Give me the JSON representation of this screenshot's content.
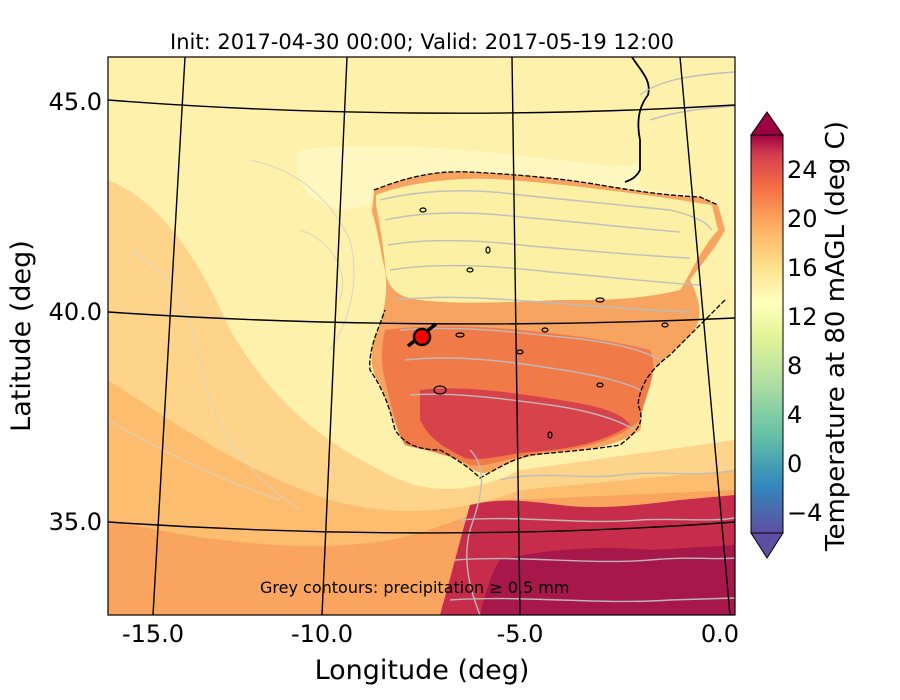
{
  "figure": {
    "title": "Init: 2017-04-30 00:00; Valid: 2017-05-19 12:00",
    "xlabel": "Longitude (deg)",
    "ylabel": "Latitude (deg)",
    "note": "Grey contours: precipitation ≥ 0.5 mm",
    "colorbar_label": "Temperature at 80 mAGL (deg C)"
  },
  "x_ticks": [
    "-15.0",
    "-10.0",
    "-5.0",
    "0.0"
  ],
  "y_ticks": [
    "45.0",
    "40.0",
    "35.0"
  ],
  "colorbar_ticks": [
    "24",
    "20",
    "16",
    "12",
    "8",
    "4",
    "0",
    "−4"
  ],
  "colorbar": {
    "min": -6,
    "max": 27,
    "colormap": "Spectral_r",
    "extend": "both"
  },
  "marker": {
    "lon": -7.7,
    "lat": 39.3,
    "color": "#ff0000",
    "wind_barb": true
  },
  "colors": {
    "sea_yellow": "#fdf1ac",
    "sea_orange": "#fdc97a",
    "land_orange": "#f4884e",
    "land_red": "#c92d4a",
    "precip_grey": "#bdbdbd"
  }
}
